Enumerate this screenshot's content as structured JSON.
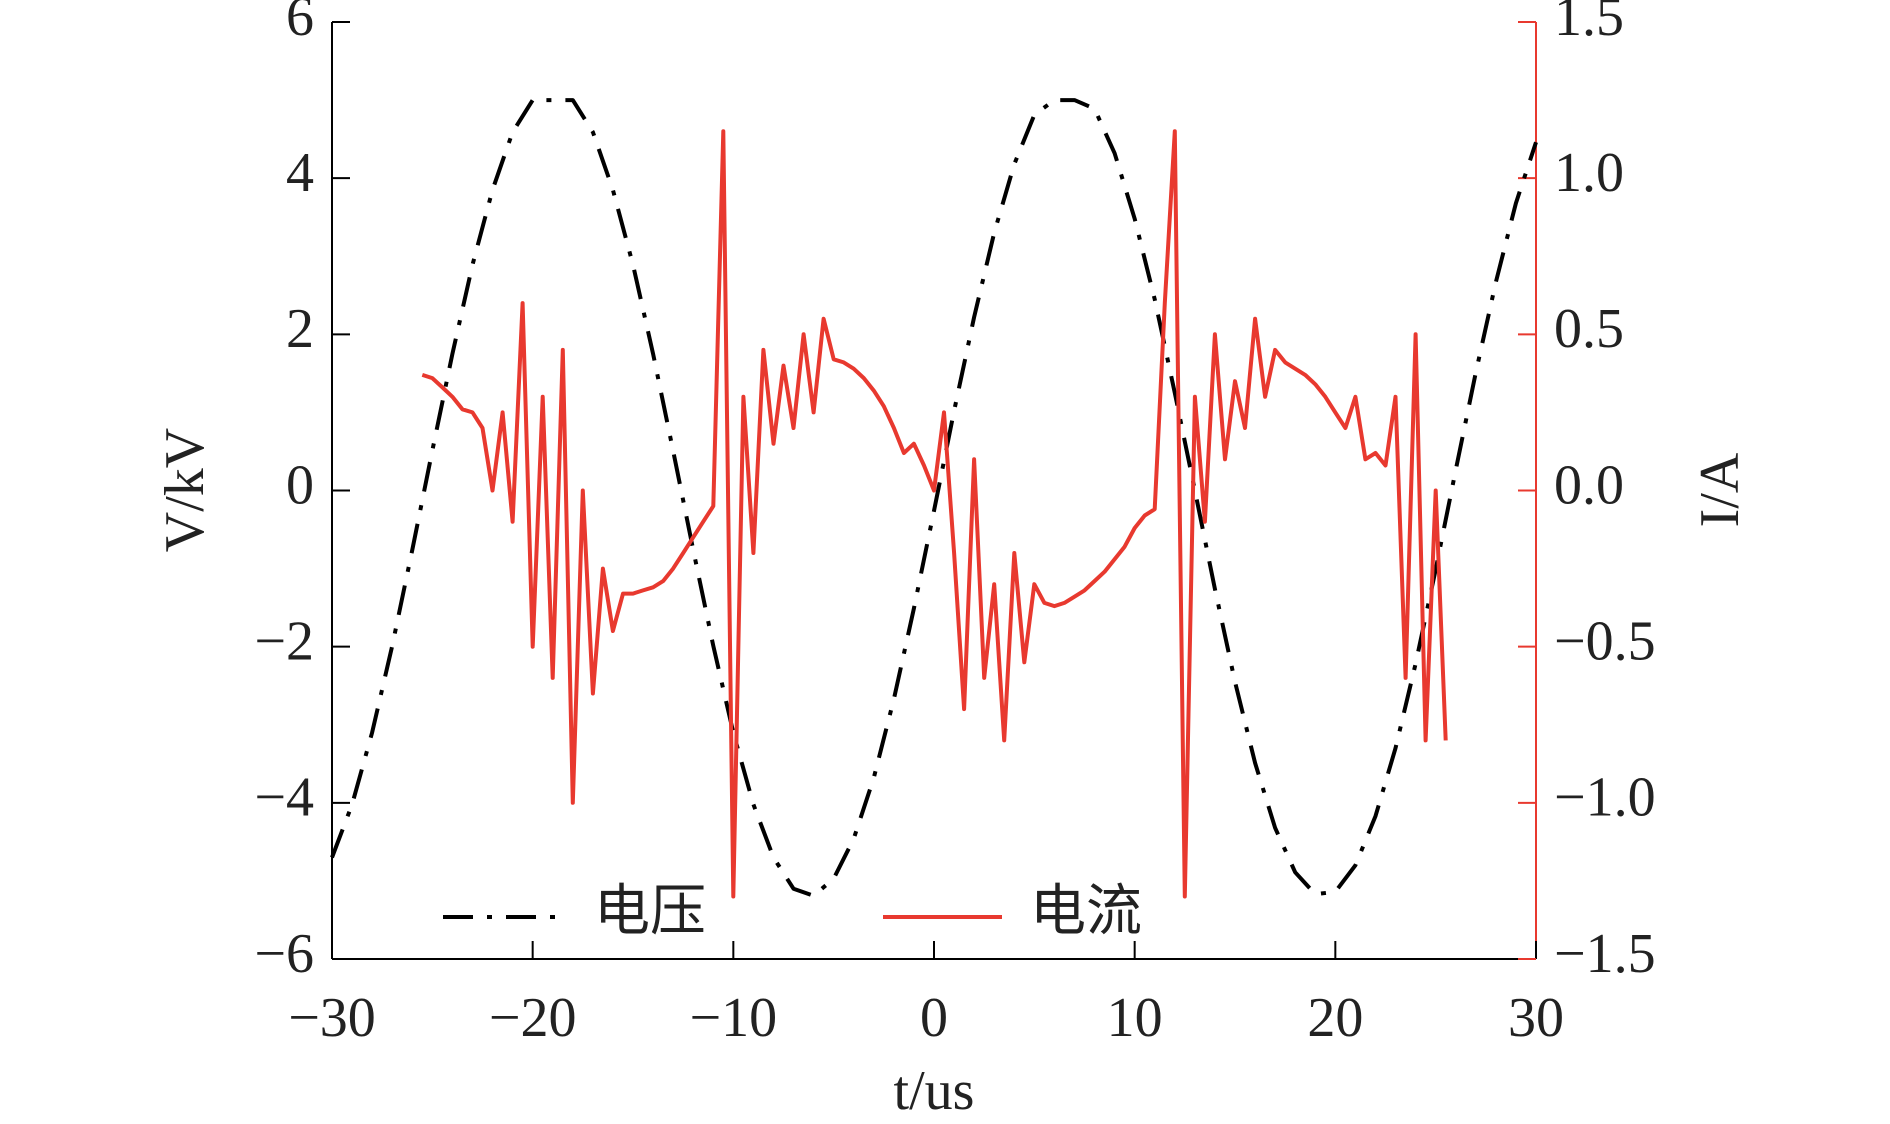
{
  "chart_data": {
    "type": "line",
    "xlabel": "t/us",
    "ylabel": "V/kV",
    "y2label": "I/A",
    "xlim": [
      -30,
      30
    ],
    "xticks": [
      {
        "value": -30,
        "label": "−30"
      },
      {
        "value": -20,
        "label": "−20"
      },
      {
        "value": -10,
        "label": "−10"
      },
      0,
      10,
      20,
      30
    ],
    "ylim": [
      -6,
      6
    ],
    "yticks": [
      {
        "value": -6,
        "label": "−6"
      },
      {
        "value": -4,
        "label": "−4"
      },
      {
        "value": -2,
        "label": "−2"
      },
      0,
      2,
      4,
      6
    ],
    "y2lim": [
      -1.5,
      1.5
    ],
    "y2ticks": [
      {
        "value": -1.5,
        "label": "−1.5"
      },
      {
        "value": -1.0,
        "label": "−1.0"
      },
      {
        "value": -0.5,
        "label": "−0.5"
      },
      {
        "value": 0,
        "label": "0.0"
      },
      {
        "value": 0.5,
        "label": "0.5"
      },
      {
        "value": 1.0,
        "label": "1.0"
      },
      {
        "value": 1.5,
        "label": "1.5"
      }
    ],
    "grid": false,
    "legend": "bottom",
    "series": [
      {
        "name": "电压",
        "color": "#000000",
        "axis": "y",
        "style": "dashdot",
        "x": [
          -30,
          -29,
          -28,
          -27,
          -26,
          -25,
          -24,
          -23,
          -22,
          -21,
          -20,
          -19,
          -18,
          -17,
          -16,
          -15,
          -14,
          -13,
          -12,
          -11,
          -10,
          -9,
          -8,
          -7,
          -6,
          -5,
          -4,
          -3,
          -2,
          -1,
          0,
          1,
          2,
          3,
          4,
          5,
          6,
          7,
          8,
          9,
          10,
          11,
          12,
          13,
          14,
          15,
          16,
          17,
          18,
          19,
          20,
          21,
          22,
          23,
          24,
          25,
          26,
          27,
          28,
          29,
          30
        ],
        "values": [
          -4.7,
          -4.02,
          -3.1,
          -1.99,
          -0.76,
          0.51,
          1.75,
          2.89,
          3.85,
          4.59,
          5.0,
          5.0,
          5.0,
          4.59,
          3.85,
          2.89,
          1.75,
          0.51,
          -0.76,
          -1.99,
          -3.1,
          -4.02,
          -4.7,
          -5.1,
          -5.19,
          -4.97,
          -4.46,
          -3.68,
          -2.67,
          -1.51,
          -0.26,
          1.02,
          2.22,
          3.3,
          4.18,
          4.81,
          5.0,
          5.0,
          4.89,
          4.32,
          3.48,
          2.45,
          1.25,
          0.0,
          -1.26,
          -2.45,
          -3.49,
          -4.32,
          -4.89,
          -5.17,
          -5.14,
          -4.8,
          -4.17,
          -3.3,
          -2.22,
          -1.01,
          0.26,
          1.51,
          2.67,
          3.68,
          4.46
        ]
      },
      {
        "name": "电流",
        "color": "#e8392f",
        "axis": "y2",
        "style": "solid",
        "x": [
          -25.5,
          -25,
          -24.5,
          -24,
          -23.5,
          -23,
          -22.5,
          -22,
          -21.5,
          -21,
          -20.5,
          -20,
          -19.5,
          -19,
          -18.5,
          -18,
          -17.5,
          -17,
          -16.5,
          -16,
          -15.5,
          -15,
          -14.5,
          -14,
          -13.5,
          -13,
          -12.5,
          -12,
          -11.5,
          -11,
          -10.5,
          -10,
          -9.5,
          -9,
          -8.5,
          -8,
          -7.5,
          -7,
          -6.5,
          -6,
          -5.5,
          -5,
          -4.5,
          -4,
          -3.5,
          -3,
          -2.5,
          -2,
          -1.5,
          -1,
          -0.5,
          0,
          0.5,
          1,
          1.5,
          2,
          2.5,
          3,
          3.5,
          4,
          4.5,
          5,
          5.5,
          6,
          6.5,
          7,
          7.5,
          8,
          8.5,
          9,
          9.5,
          10,
          10.5,
          11,
          11.5,
          12,
          12.5,
          13,
          13.5,
          14,
          14.5,
          15,
          15.5,
          16,
          16.5,
          17,
          17.5,
          18,
          18.5,
          19,
          19.5,
          20,
          20.5,
          21,
          21.5,
          22,
          22.5,
          23,
          23.5,
          24,
          24.5,
          25,
          25.5
        ],
        "values": [
          0.37,
          0.36,
          0.33,
          0.3,
          0.26,
          0.25,
          0.2,
          0.0,
          0.25,
          -0.1,
          0.6,
          -0.5,
          0.3,
          -0.6,
          0.45,
          -1.0,
          0.0,
          -0.65,
          -0.25,
          -0.45,
          -0.33,
          -0.33,
          -0.32,
          -0.31,
          -0.29,
          -0.25,
          -0.2,
          -0.15,
          -0.1,
          -0.05,
          1.15,
          -1.3,
          0.3,
          -0.2,
          0.45,
          0.15,
          0.4,
          0.2,
          0.5,
          0.25,
          0.55,
          0.42,
          0.41,
          0.39,
          0.36,
          0.32,
          0.27,
          0.2,
          0.12,
          0.15,
          0.08,
          0.0,
          0.25,
          -0.2,
          -0.7,
          0.1,
          -0.6,
          -0.3,
          -0.8,
          -0.2,
          -0.55,
          -0.3,
          -0.36,
          -0.37,
          -0.36,
          -0.34,
          -0.32,
          -0.29,
          -0.26,
          -0.22,
          -0.18,
          -0.12,
          -0.08,
          -0.06,
          0.6,
          1.15,
          -1.3,
          0.3,
          -0.1,
          0.5,
          0.1,
          0.35,
          0.2,
          0.55,
          0.3,
          0.45,
          0.41,
          0.39,
          0.37,
          0.34,
          0.3,
          0.25,
          0.2,
          0.3,
          0.1,
          0.12,
          0.08,
          0.3,
          -0.6,
          0.5,
          -0.8,
          0.0,
          -0.8
        ]
      }
    ]
  }
}
